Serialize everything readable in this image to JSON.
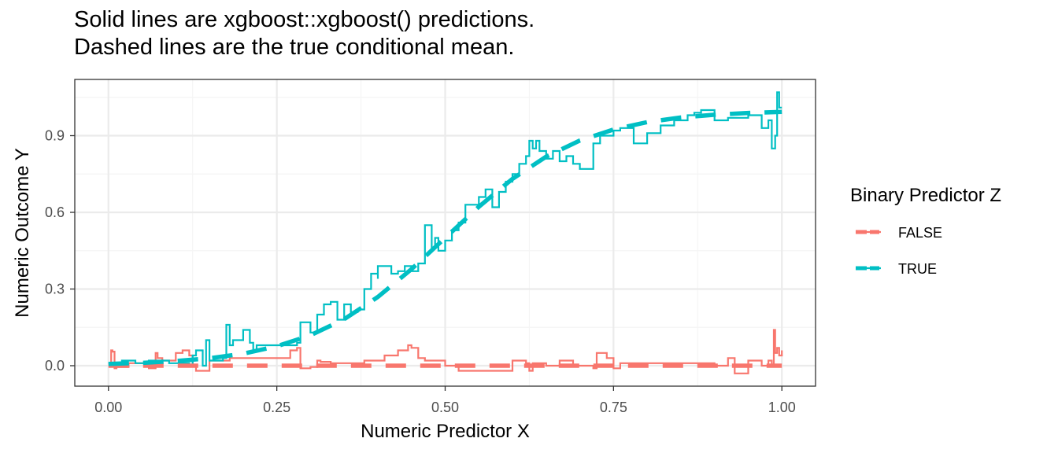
{
  "title": {
    "line1": "Solid lines are xgboost::xgboost() predictions.",
    "line2": "Dashed lines are the true conditional mean."
  },
  "colors": {
    "false_series": "#F8766D",
    "true_series": "#00BFC4",
    "grid_major": "#ebebeb",
    "grid_minor": "#f5f5f5",
    "panel_border": "#333333"
  },
  "chart_data": {
    "type": "line",
    "xlabel": "Numeric Predictor X",
    "ylabel": "Numeric Outcome Y",
    "xlim": [
      -0.05,
      1.05
    ],
    "ylim": [
      -0.08,
      1.12
    ],
    "xticks": [
      0.0,
      0.25,
      0.5,
      0.75,
      1.0
    ],
    "xtick_labels": [
      "0.00",
      "0.25",
      "0.50",
      "0.75",
      "1.00"
    ],
    "yticks": [
      0.0,
      0.3,
      0.6,
      0.9
    ],
    "ytick_labels": [
      "0.0",
      "0.3",
      "0.6",
      "0.9"
    ],
    "grid": true,
    "legend": {
      "title": "Binary Predictor Z",
      "position": "right",
      "entries": [
        "FALSE",
        "TRUE"
      ]
    },
    "series": [
      {
        "name": "FALSE",
        "kind": "prediction",
        "line": "solid",
        "color": "#F8766D",
        "x": [
          0.0,
          0.004,
          0.006,
          0.009,
          0.012,
          0.03,
          0.06,
          0.07,
          0.073,
          0.08,
          0.1,
          0.11,
          0.12,
          0.125,
          0.13,
          0.15,
          0.18,
          0.2,
          0.22,
          0.24,
          0.27,
          0.28,
          0.285,
          0.3,
          0.31,
          0.315,
          0.33,
          0.38,
          0.41,
          0.43,
          0.445,
          0.45,
          0.46,
          0.47,
          0.5,
          0.52,
          0.55,
          0.57,
          0.6,
          0.62,
          0.625,
          0.63,
          0.65,
          0.67,
          0.69,
          0.72,
          0.725,
          0.74,
          0.75,
          0.76,
          0.8,
          0.85,
          0.9,
          0.92,
          0.93,
          0.95,
          0.97,
          0.98,
          0.985,
          0.988,
          0.99,
          0.993,
          0.996,
          1.0
        ],
        "y": [
          0.0,
          0.06,
          0.055,
          -0.01,
          -0.005,
          0.01,
          -0.01,
          0.05,
          0.03,
          0.02,
          0.05,
          0.06,
          0.04,
          0.0,
          -0.02,
          0.02,
          0.03,
          0.03,
          0.03,
          0.03,
          0.06,
          0.07,
          -0.01,
          -0.005,
          0.02,
          0.015,
          0.01,
          0.02,
          0.04,
          0.06,
          0.08,
          0.07,
          0.03,
          0.02,
          0.0,
          -0.02,
          -0.02,
          -0.02,
          0.02,
          0.01,
          -0.02,
          0.01,
          0.0,
          0.02,
          0.0,
          -0.01,
          0.05,
          0.03,
          -0.01,
          0.01,
          0.01,
          0.01,
          0.0,
          0.03,
          -0.03,
          0.02,
          0.0,
          0.02,
          0.0,
          0.14,
          0.05,
          0.07,
          0.04,
          0.06
        ]
      },
      {
        "name": "TRUE",
        "kind": "prediction",
        "line": "solid",
        "color": "#00BFC4",
        "x": [
          0.0,
          0.02,
          0.04,
          0.06,
          0.09,
          0.12,
          0.125,
          0.13,
          0.14,
          0.145,
          0.15,
          0.17,
          0.175,
          0.18,
          0.185,
          0.2,
          0.21,
          0.215,
          0.22,
          0.25,
          0.27,
          0.28,
          0.285,
          0.3,
          0.31,
          0.32,
          0.33,
          0.34,
          0.35,
          0.36,
          0.37,
          0.38,
          0.39,
          0.4,
          0.4,
          0.42,
          0.43,
          0.44,
          0.45,
          0.46,
          0.47,
          0.48,
          0.485,
          0.49,
          0.5,
          0.51,
          0.52,
          0.53,
          0.55,
          0.56,
          0.57,
          0.58,
          0.59,
          0.6,
          0.61,
          0.62,
          0.625,
          0.63,
          0.635,
          0.64,
          0.65,
          0.66,
          0.67,
          0.68,
          0.69,
          0.7,
          0.72,
          0.73,
          0.75,
          0.76,
          0.78,
          0.8,
          0.82,
          0.84,
          0.86,
          0.87,
          0.88,
          0.9,
          0.92,
          0.95,
          0.97,
          0.98,
          0.985,
          0.99,
          0.993,
          0.996,
          1.0
        ],
        "y": [
          0.01,
          0.02,
          0.01,
          0.02,
          0.01,
          0.0,
          0.04,
          0.06,
          0.0,
          0.1,
          0.02,
          0.03,
          0.16,
          0.08,
          0.1,
          0.14,
          0.09,
          0.06,
          0.08,
          0.08,
          0.08,
          0.09,
          0.17,
          0.13,
          0.2,
          0.24,
          0.25,
          0.18,
          0.24,
          0.21,
          0.22,
          0.3,
          0.36,
          0.34,
          0.39,
          0.36,
          0.37,
          0.39,
          0.37,
          0.4,
          0.55,
          0.46,
          0.5,
          0.45,
          0.49,
          0.53,
          0.56,
          0.63,
          0.66,
          0.69,
          0.62,
          0.68,
          0.72,
          0.75,
          0.79,
          0.82,
          0.88,
          0.85,
          0.88,
          0.84,
          0.81,
          0.84,
          0.8,
          0.82,
          0.79,
          0.77,
          0.87,
          0.9,
          0.92,
          0.93,
          0.87,
          0.91,
          0.94,
          0.96,
          0.98,
          0.99,
          1.0,
          0.96,
          0.97,
          0.98,
          0.93,
          0.96,
          0.85,
          0.9,
          1.07,
          1.01,
          1.01
        ]
      },
      {
        "name": "FALSE",
        "kind": "true_mean",
        "line": "dashed",
        "color": "#F8766D",
        "x": [
          0.0,
          1.0
        ],
        "y": [
          0.0,
          0.0
        ]
      },
      {
        "name": "TRUE",
        "kind": "true_mean",
        "line": "dashed",
        "color": "#00BFC4",
        "x": [
          0.0,
          0.05,
          0.1,
          0.15,
          0.2,
          0.25,
          0.3,
          0.35,
          0.4,
          0.45,
          0.5,
          0.55,
          0.6,
          0.65,
          0.7,
          0.75,
          0.8,
          0.85,
          0.9,
          0.95,
          1.0
        ],
        "y": [
          0.007,
          0.011,
          0.018,
          0.029,
          0.047,
          0.076,
          0.119,
          0.182,
          0.269,
          0.378,
          0.5,
          0.622,
          0.731,
          0.818,
          0.881,
          0.924,
          0.953,
          0.971,
          0.982,
          0.989,
          0.993
        ]
      }
    ]
  }
}
